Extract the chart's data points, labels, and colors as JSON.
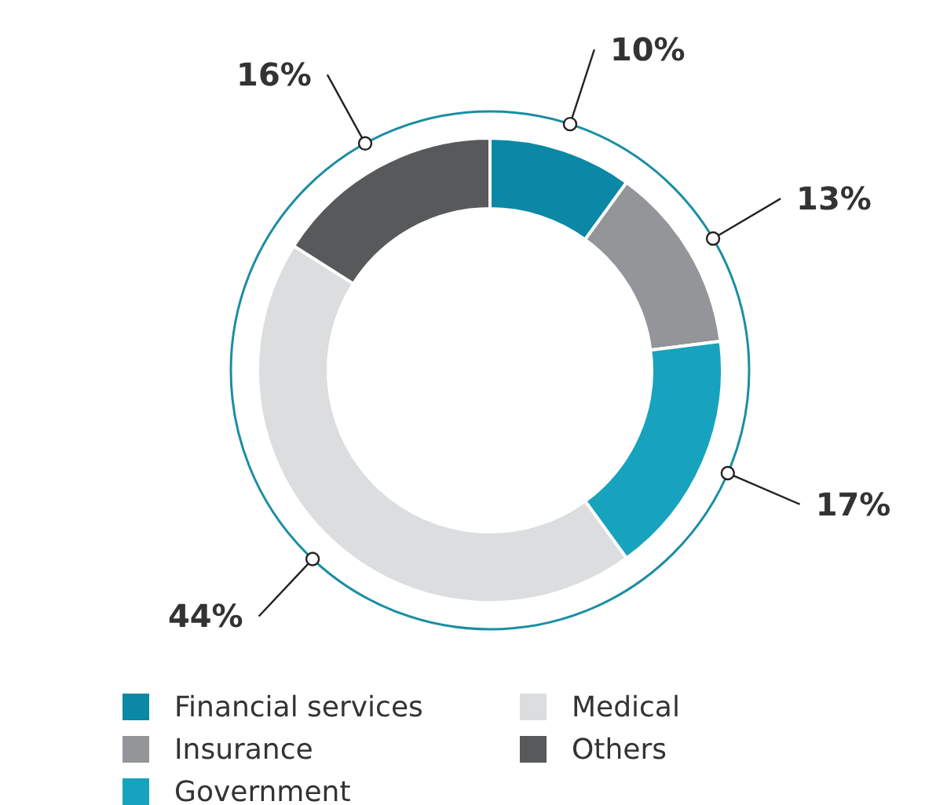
{
  "chart_data": {
    "type": "donut",
    "categories": [
      "Financial services",
      "Insurance",
      "Government",
      "Medical",
      "Others"
    ],
    "values": [
      10,
      13,
      17,
      44,
      16
    ],
    "value_labels": [
      "10%",
      "13%",
      "17%",
      "44%",
      "16%"
    ],
    "colors": [
      "#0a88a5",
      "#939598",
      "#17a3bd",
      "#dcdddf",
      "#58595b"
    ],
    "legend": "bottom"
  }
}
